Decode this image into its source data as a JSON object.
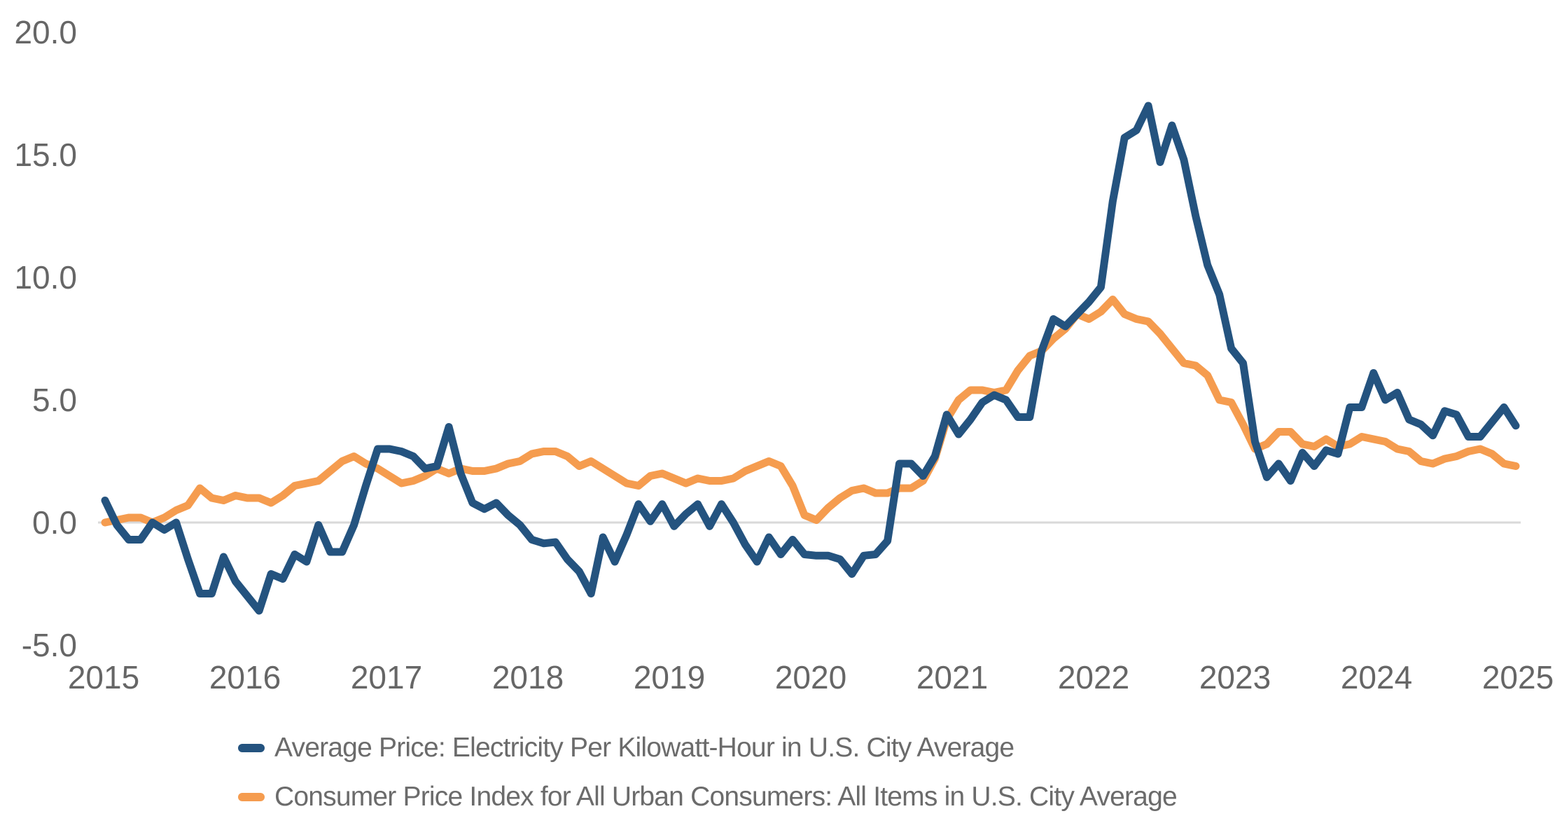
{
  "chart_data": {
    "type": "line",
    "title": "",
    "xlabel": "",
    "ylabel": "",
    "ylim": [
      -5.0,
      20.0
    ],
    "grid": "zero-line-only",
    "legend_position": "bottom-left",
    "y_axis": {
      "tick_values": [
        20,
        15,
        10,
        5,
        0,
        -5
      ],
      "tick_labels": [
        "20.0",
        "15.0",
        "10.0",
        "5.0",
        "0.0",
        "-5.0"
      ]
    },
    "x_axis": {
      "tick_labels": [
        "2015",
        "2016",
        "2017",
        "2018",
        "2019",
        "2020",
        "2021",
        "2022",
        "2023",
        "2024",
        "2025"
      ]
    },
    "x": [
      "2015-05",
      "2015-06",
      "2015-07",
      "2015-08",
      "2015-09",
      "2015-10",
      "2015-11",
      "2015-12",
      "2016-01",
      "2016-02",
      "2016-03",
      "2016-04",
      "2016-05",
      "2016-06",
      "2016-07",
      "2016-08",
      "2016-09",
      "2016-10",
      "2016-11",
      "2016-12",
      "2017-01",
      "2017-02",
      "2017-03",
      "2017-04",
      "2017-05",
      "2017-06",
      "2017-07",
      "2017-08",
      "2017-09",
      "2017-10",
      "2017-11",
      "2017-12",
      "2018-01",
      "2018-02",
      "2018-03",
      "2018-04",
      "2018-05",
      "2018-06",
      "2018-07",
      "2018-08",
      "2018-09",
      "2018-10",
      "2018-11",
      "2018-12",
      "2019-01",
      "2019-02",
      "2019-03",
      "2019-04",
      "2019-05",
      "2019-06",
      "2019-07",
      "2019-08",
      "2019-09",
      "2019-10",
      "2019-11",
      "2019-12",
      "2020-01",
      "2020-02",
      "2020-03",
      "2020-04",
      "2020-05",
      "2020-06",
      "2020-07",
      "2020-08",
      "2020-09",
      "2020-10",
      "2020-11",
      "2020-12",
      "2021-01",
      "2021-02",
      "2021-03",
      "2021-04",
      "2021-05",
      "2021-06",
      "2021-07",
      "2021-08",
      "2021-09",
      "2021-10",
      "2021-11",
      "2021-12",
      "2022-01",
      "2022-02",
      "2022-03",
      "2022-04",
      "2022-05",
      "2022-06",
      "2022-07",
      "2022-08",
      "2022-09",
      "2022-10",
      "2022-11",
      "2022-12",
      "2023-01",
      "2023-02",
      "2023-03",
      "2023-04",
      "2023-05",
      "2023-06",
      "2023-07",
      "2023-08",
      "2023-09",
      "2023-10",
      "2023-11",
      "2023-12",
      "2024-01",
      "2024-02",
      "2024-03",
      "2024-04",
      "2024-05",
      "2024-06",
      "2024-07",
      "2024-08",
      "2024-09",
      "2024-10",
      "2024-11",
      "2024-12",
      "2025-01",
      "2025-02",
      "2025-03",
      "2025-04"
    ],
    "series": [
      {
        "name": "Consumer Price Index for All Urban Consumers: All Items in U.S. City Average",
        "color": "#F59C4F",
        "values": [
          0.0,
          0.1,
          0.2,
          0.2,
          0.0,
          0.2,
          0.5,
          0.7,
          1.4,
          1.0,
          0.9,
          1.1,
          1.0,
          1.0,
          0.8,
          1.1,
          1.5,
          1.6,
          1.7,
          2.1,
          2.5,
          2.7,
          2.4,
          2.2,
          1.9,
          1.6,
          1.7,
          1.9,
          2.2,
          2.0,
          2.2,
          2.1,
          2.1,
          2.2,
          2.4,
          2.5,
          2.8,
          2.9,
          2.9,
          2.7,
          2.3,
          2.5,
          2.2,
          1.9,
          1.6,
          1.5,
          1.9,
          2.0,
          1.8,
          1.6,
          1.8,
          1.7,
          1.7,
          1.8,
          2.1,
          2.3,
          2.5,
          2.3,
          1.5,
          0.3,
          0.1,
          0.6,
          1.0,
          1.3,
          1.4,
          1.2,
          1.2,
          1.4,
          1.4,
          1.7,
          2.6,
          4.2,
          5.0,
          5.4,
          5.4,
          5.3,
          5.4,
          6.2,
          6.8,
          7.0,
          7.5,
          7.9,
          8.5,
          8.3,
          8.6,
          9.1,
          8.5,
          8.3,
          8.2,
          7.7,
          7.1,
          6.5,
          6.4,
          6.0,
          5.0,
          4.9,
          4.0,
          3.0,
          3.2,
          3.7,
          3.7,
          3.2,
          3.1,
          3.4,
          3.1,
          3.2,
          3.5,
          3.4,
          3.3,
          3.0,
          2.9,
          2.5,
          2.4,
          2.6,
          2.7,
          2.9,
          3.0,
          2.8,
          2.4,
          2.3
        ]
      },
      {
        "name": "Average Price: Electricity Per Kilowatt-Hour in U.S. City Average",
        "color": "#24537F",
        "values": [
          0.9,
          -0.1,
          -0.7,
          -0.7,
          0.0,
          -0.3,
          0.0,
          -1.5,
          -2.9,
          -2.9,
          -1.4,
          -2.4,
          -3.0,
          -3.6,
          -2.1,
          -2.3,
          -1.3,
          -1.6,
          -0.1,
          -1.2,
          -1.2,
          -0.1,
          1.5,
          3.0,
          3.0,
          2.9,
          2.7,
          2.2,
          2.3,
          3.9,
          2.0,
          0.8,
          0.55,
          0.8,
          0.3,
          -0.1,
          -0.7,
          -0.85,
          -0.8,
          -1.5,
          -2.0,
          -2.9,
          -0.6,
          -1.6,
          -0.5,
          0.75,
          0.05,
          0.75,
          -0.15,
          0.35,
          0.75,
          -0.15,
          0.75,
          0.0,
          -0.9,
          -1.6,
          -0.6,
          -1.3,
          -0.7,
          -1.3,
          -1.35,
          -1.35,
          -1.5,
          -2.1,
          -1.35,
          -1.3,
          -0.75,
          2.4,
          2.4,
          1.9,
          2.7,
          4.4,
          3.6,
          4.2,
          4.9,
          5.2,
          5.0,
          4.3,
          4.3,
          7.0,
          8.3,
          8.0,
          8.5,
          9.0,
          9.6,
          13.1,
          15.7,
          16.0,
          17.0,
          14.7,
          16.2,
          14.8,
          12.5,
          10.5,
          9.3,
          7.1,
          6.5,
          3.3,
          1.85,
          2.4,
          1.7,
          2.85,
          2.3,
          2.95,
          2.8,
          4.7,
          4.7,
          6.1,
          5.0,
          5.3,
          4.2,
          4.0,
          3.55,
          4.55,
          4.4,
          3.5,
          3.5,
          4.1,
          4.7,
          3.95
        ]
      }
    ]
  },
  "legend": {
    "items": [
      {
        "label": "Average Price: Electricity Per Kilowatt-Hour in U.S. City Average",
        "color": "#24537F"
      },
      {
        "label": "Consumer Price Index for All Urban Consumers: All Items in U.S. City Average",
        "color": "#F59C4F"
      }
    ]
  },
  "style": {
    "zero_gridline_color": "#D9D9D9",
    "tick_label_color": "#666666",
    "legend_text_color": "#6b6b6b",
    "background": "#ffffff"
  }
}
